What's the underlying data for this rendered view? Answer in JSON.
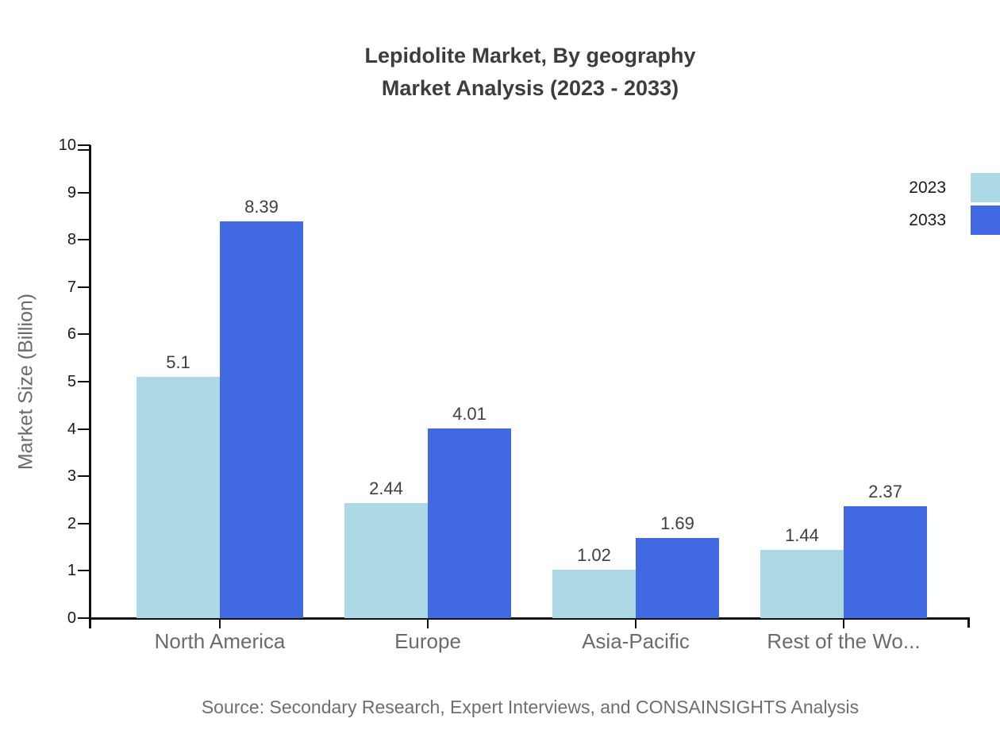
{
  "title": {
    "line1": "Lepidolite Market, By geography",
    "line2": "Market Analysis (2023 - 2033)"
  },
  "source_note": "Source: Secondary Research, Expert Interviews, and CONSAINSIGHTS Analysis",
  "chart_data": {
    "type": "bar",
    "categories": [
      "North America",
      "Europe",
      "Asia-Pacific",
      "Rest of the Wo..."
    ],
    "series": [
      {
        "name": "2023",
        "color": "#ADD8E6",
        "values": [
          5.1,
          2.44,
          1.02,
          1.44
        ]
      },
      {
        "name": "2033",
        "color": "#4169E1",
        "values": [
          8.39,
          4.01,
          1.69,
          2.37
        ]
      }
    ],
    "title": "Lepidolite Market, By geography Market Analysis (2023 - 2033)",
    "xlabel": "",
    "ylabel": "Market Size (Billion)",
    "ylim": [
      0,
      10
    ],
    "ytick_step": 1,
    "grid": false,
    "legend_position": "top-right",
    "value_labels": true
  },
  "palette": {
    "axis": "#111111",
    "title_text": "#3d3d3d",
    "tick_label_text": "#1a1a1a",
    "category_label_text": "#6b6b6b",
    "value_label_text": "#404040",
    "source_text": "#6e6e6e"
  }
}
